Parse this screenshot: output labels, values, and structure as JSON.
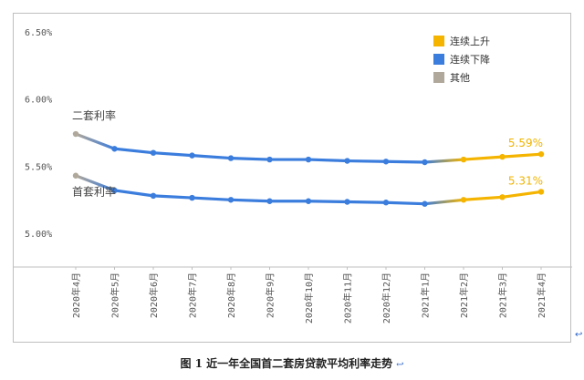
{
  "caption": "图 1  近一年全国首二套房贷款平均利率走势",
  "caption_mark": "↩",
  "corner_mark": "↩",
  "colors": {
    "rising": "#f4b400",
    "falling": "#3b7ddd",
    "other": "#b0a89a",
    "grid": "#bfbfbf"
  },
  "chart_data": {
    "type": "line",
    "categories": [
      "2020年4月",
      "2020年5月",
      "2020年6月",
      "2020年7月",
      "2020年8月",
      "2020年9月",
      "2020年10月",
      "2020年11月",
      "2020年12月",
      "2021年1月",
      "2021年2月",
      "2021年3月",
      "2021年4月"
    ],
    "yticks": [
      "6.50%",
      "6.00%",
      "5.50%",
      "5.00%"
    ],
    "ylim": [
      4.75,
      6.5
    ],
    "legend": [
      {
        "label": "连续上升",
        "color": "#f4b400"
      },
      {
        "label": "连续下降",
        "color": "#3b7ddd"
      },
      {
        "label": "其他",
        "color": "#b0a89a"
      }
    ],
    "legend_position": "top-right",
    "series": [
      {
        "name": "二套利率",
        "values": [
          5.74,
          5.63,
          5.6,
          5.58,
          5.56,
          5.55,
          5.55,
          5.54,
          5.535,
          5.53,
          5.55,
          5.57,
          5.59
        ],
        "end_label": "5.59%"
      },
      {
        "name": "首套利率",
        "values": [
          5.43,
          5.32,
          5.28,
          5.265,
          5.25,
          5.24,
          5.24,
          5.235,
          5.23,
          5.22,
          5.25,
          5.27,
          5.31
        ],
        "end_label": "5.31%"
      }
    ],
    "grid": false
  }
}
